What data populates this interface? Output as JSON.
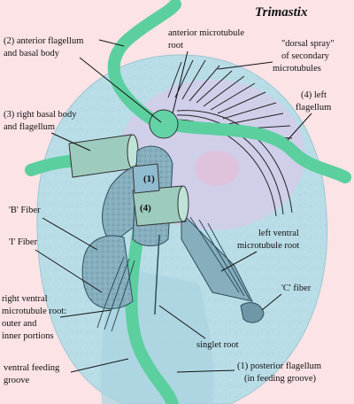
{
  "title": "Trimastix",
  "labels": {
    "anterior_flagellum": [
      "(2) anterior flagellum",
      "and basal body"
    ],
    "anterior_microtubule_root": [
      "anterior microtubule",
      "root"
    ],
    "dorsal_spray": [
      "\"dorsal spray\"",
      "of secondary",
      "microtubules"
    ],
    "left_flagellum": [
      "(4) left",
      "flagellum"
    ],
    "right_basal_body": [
      "(3) right basal body",
      "and flagellum"
    ],
    "b_fiber": "'B' Fiber",
    "i_fiber": "'I' Fiber",
    "left_ventral_root": [
      "left ventral",
      "microtubule root"
    ],
    "c_fiber": "'C' fiber",
    "right_ventral_root": [
      "right ventral",
      "microtubule root:",
      "outer and",
      "inner portions"
    ],
    "singlet_root": "singlet root",
    "ventral_groove": [
      "ventral feeding",
      "groove"
    ],
    "posterior_flagellum": [
      "(1) posterior flagellum",
      "(in feeding groove)"
    ]
  },
  "markers": {
    "basal_body_1": "(1)",
    "basal_body_4": "(4)"
  },
  "colors": {
    "background": "#fbe3e6",
    "cell_body": "#b7dde6",
    "nucleus": "#d5cdec",
    "flagellum": "#5fcfa2",
    "fiber": "#7fa6b8",
    "ink": "#111111"
  }
}
